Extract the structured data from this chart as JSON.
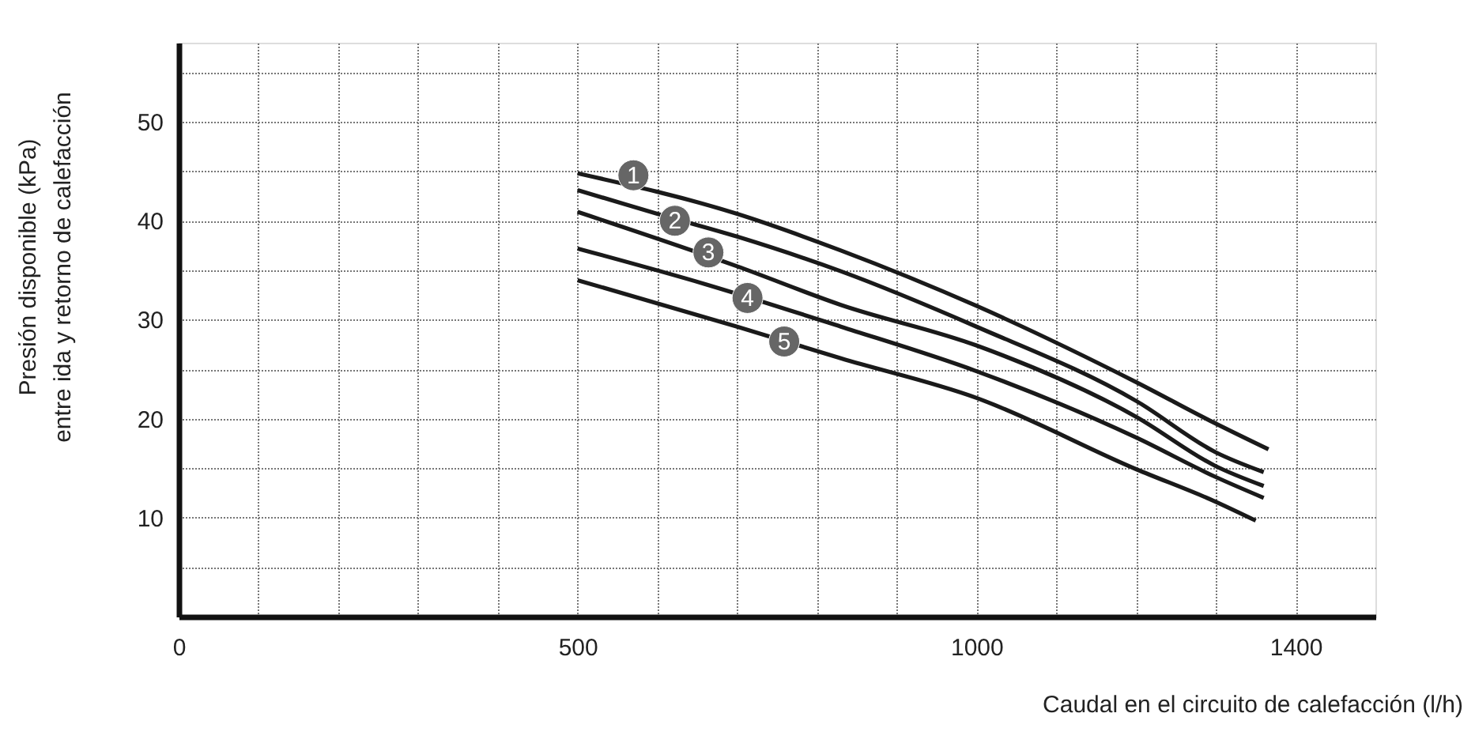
{
  "chart_data": {
    "type": "line",
    "xlabel": "Caudal en el circuito de calefacción (l/h)",
    "ylabel": "Presión disponible (kPa)\nentre ida y retorno de calefacción",
    "xlim": [
      0,
      1500
    ],
    "ylim": [
      0,
      58
    ],
    "xticks": [
      0,
      {
        "value": 100,
        "label": null
      },
      {
        "value": 200,
        "label": null
      },
      {
        "value": 300,
        "label": null
      },
      {
        "value": 400,
        "label": null
      },
      500,
      {
        "value": 600,
        "label": null
      },
      {
        "value": 700,
        "label": null
      },
      {
        "value": 800,
        "label": null
      },
      {
        "value": 900,
        "label": null
      },
      1000,
      {
        "value": 1100,
        "label": null
      },
      {
        "value": 1200,
        "label": null
      },
      {
        "value": 1300,
        "label": null
      },
      1400
    ],
    "yticks": [
      {
        "value": 5,
        "label": null
      },
      10,
      {
        "value": 15,
        "label": null
      },
      20,
      {
        "value": 25,
        "label": null
      },
      30,
      {
        "value": 35,
        "label": null
      },
      40,
      {
        "value": 45,
        "label": null
      },
      50,
      {
        "value": 55,
        "label": null
      }
    ],
    "grid": true,
    "legend": false,
    "marker": "none",
    "line_style": "solid",
    "series": [
      {
        "color": "#1a1a1a",
        "x": [
          500,
          700,
          830,
          1000,
          1200,
          1300,
          1366
        ],
        "values": [
          44.8,
          40.7,
          37.0,
          31.4,
          23.7,
          19.5,
          16.9
        ]
      },
      {
        "color": "#1a1a1a",
        "x": [
          500,
          600,
          700,
          830,
          1000,
          1200,
          1300,
          1360
        ],
        "values": [
          43.1,
          40.7,
          38.4,
          34.9,
          29.3,
          21.8,
          16.6,
          14.6
        ]
      },
      {
        "color": "#1a1a1a",
        "x": [
          500,
          700,
          830,
          1000,
          1200,
          1300,
          1360
        ],
        "values": [
          40.9,
          35.4,
          31.5,
          27.4,
          20.2,
          15.2,
          13.2
        ]
      },
      {
        "color": "#1a1a1a",
        "x": [
          500,
          660,
          830,
          1000,
          1200,
          1300,
          1360
        ],
        "values": [
          37.2,
          33.6,
          29.3,
          24.8,
          18.1,
          14.1,
          12.0
        ]
      },
      {
        "color": "#1a1a1a",
        "x": [
          500,
          700,
          830,
          1000,
          1200,
          1300,
          1350
        ],
        "values": [
          34.0,
          29.3,
          26.1,
          22.1,
          14.9,
          11.6,
          9.7
        ]
      }
    ],
    "annotations": [
      {
        "text": "1",
        "x": 570,
        "y": 44.6
      },
      {
        "text": "2",
        "x": 622,
        "y": 40.0
      },
      {
        "text": "3",
        "x": 664,
        "y": 36.8
      },
      {
        "text": "4",
        "x": 713,
        "y": 32.2
      },
      {
        "text": "5",
        "x": 759,
        "y": 27.8
      }
    ]
  }
}
